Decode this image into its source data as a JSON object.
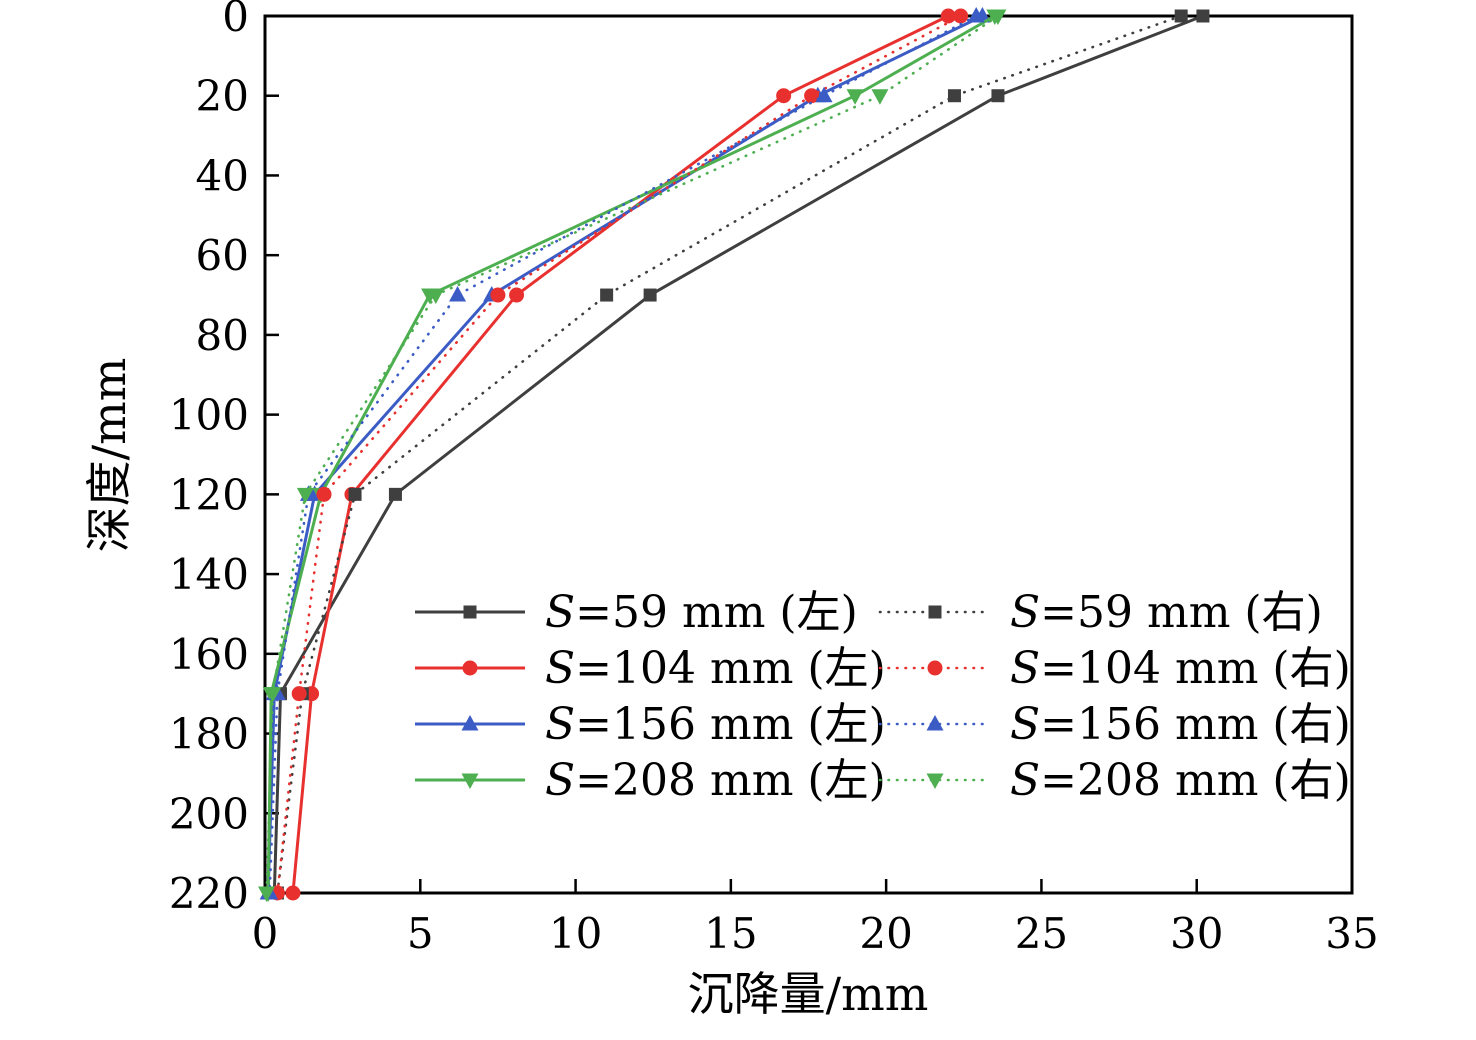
{
  "figure": {
    "background": "#ffffff"
  },
  "chart_data": {
    "type": "line",
    "title": "",
    "xlabel": "沉降量/mm",
    "ylabel": "深度/mm",
    "xlim": [
      0,
      35
    ],
    "ylim": [
      0,
      220
    ],
    "y_axis_note": "depth axis inverted: 0 at top, 220 at bottom",
    "xticks": [
      0,
      5,
      10,
      15,
      20,
      25,
      30,
      35
    ],
    "yticks": [
      0,
      20,
      40,
      60,
      80,
      100,
      120,
      140,
      160,
      180,
      200,
      220
    ],
    "grid": false,
    "legend_position": "inside bottom-center, 2 columns (solid left-column, dotted right-column)",
    "series": [
      {
        "id": "s59-left",
        "name": "S=59 mm (左)",
        "color": "#3f3f3f",
        "style": "solid",
        "marker": "square",
        "points": [
          [
            30.2,
            0
          ],
          [
            23.6,
            20
          ],
          [
            12.4,
            70
          ],
          [
            4.2,
            120
          ],
          [
            0.5,
            170
          ],
          [
            0.3,
            220
          ]
        ]
      },
      {
        "id": "s104-left",
        "name": "S=104 mm (左)",
        "color": "#e8312f",
        "style": "solid",
        "marker": "circle",
        "points": [
          [
            22.0,
            0
          ],
          [
            16.7,
            20
          ],
          [
            8.1,
            70
          ],
          [
            2.8,
            120
          ],
          [
            1.5,
            170
          ],
          [
            0.9,
            220
          ]
        ]
      },
      {
        "id": "s156-left",
        "name": "S=156 mm (左)",
        "color": "#3c5cc5",
        "style": "solid",
        "marker": "triangle-up",
        "points": [
          [
            23.1,
            0
          ],
          [
            17.8,
            20
          ],
          [
            7.3,
            70
          ],
          [
            1.6,
            120
          ],
          [
            0.3,
            170
          ],
          [
            0.1,
            220
          ]
        ]
      },
      {
        "id": "s208-left",
        "name": "S=208 mm (左)",
        "color": "#4daf50",
        "style": "solid",
        "marker": "triangle-down",
        "points": [
          [
            23.5,
            0
          ],
          [
            19.0,
            20
          ],
          [
            5.3,
            70
          ],
          [
            1.8,
            120
          ],
          [
            0.2,
            170
          ],
          [
            0.1,
            220
          ]
        ]
      },
      {
        "id": "s59-right",
        "name": "S=59 mm (右)",
        "color": "#3f3f3f",
        "style": "dotted",
        "marker": "square",
        "points": [
          [
            29.5,
            0
          ],
          [
            22.2,
            20
          ],
          [
            11.0,
            70
          ],
          [
            2.9,
            120
          ],
          [
            1.2,
            170
          ],
          [
            0.4,
            220
          ]
        ]
      },
      {
        "id": "s104-right",
        "name": "S=104 mm (右)",
        "color": "#e8312f",
        "style": "dotted",
        "marker": "circle",
        "points": [
          [
            22.4,
            0
          ],
          [
            17.6,
            20
          ],
          [
            7.5,
            70
          ],
          [
            1.9,
            120
          ],
          [
            1.1,
            170
          ],
          [
            0.4,
            220
          ]
        ]
      },
      {
        "id": "s156-right",
        "name": "S=156 mm (右)",
        "color": "#3c5cc5",
        "style": "dotted",
        "marker": "triangle-up",
        "points": [
          [
            22.9,
            0
          ],
          [
            18.0,
            20
          ],
          [
            6.2,
            70
          ],
          [
            1.4,
            120
          ],
          [
            0.4,
            170
          ],
          [
            0.15,
            220
          ]
        ]
      },
      {
        "id": "s208-right",
        "name": "S=208 mm (右)",
        "color": "#4daf50",
        "style": "dotted",
        "marker": "triangle-down",
        "points": [
          [
            23.6,
            0
          ],
          [
            19.8,
            20
          ],
          [
            5.5,
            70
          ],
          [
            1.3,
            120
          ],
          [
            0.25,
            170
          ],
          [
            0.05,
            220
          ]
        ]
      }
    ]
  }
}
